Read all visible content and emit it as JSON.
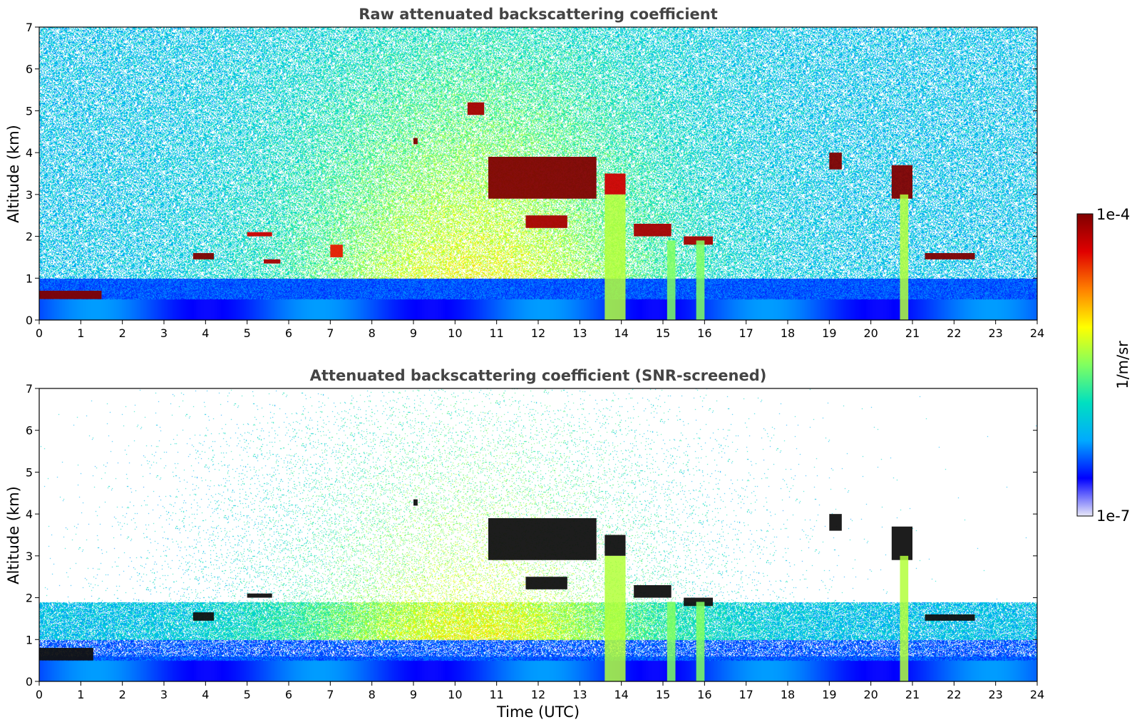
{
  "chart_data": [
    {
      "type": "heatmap",
      "title": "Raw attenuated backscattering coefficient",
      "xlabel": "",
      "ylabel": "Altitude (km)",
      "xlim": [
        0,
        24
      ],
      "ylim": [
        0,
        7
      ],
      "xticks": [
        "0",
        "1",
        "2",
        "3",
        "4",
        "5",
        "6",
        "7",
        "8",
        "9",
        "10",
        "11",
        "12",
        "13",
        "14",
        "15",
        "16",
        "17",
        "18",
        "19",
        "20",
        "21",
        "22",
        "23",
        "24"
      ],
      "yticks": [
        "0",
        "1",
        "2",
        "3",
        "4",
        "5",
        "6",
        "7"
      ],
      "features": [
        {
          "label": "low cloud",
          "x": [
            0.0,
            1.5
          ],
          "y": [
            0.5,
            0.7
          ],
          "level": 1.0
        },
        {
          "label": "cloud",
          "x": [
            3.7,
            4.2
          ],
          "y": [
            1.45,
            1.6
          ],
          "level": 1.0
        },
        {
          "label": "cloud",
          "x": [
            5.0,
            5.6
          ],
          "y": [
            2.0,
            2.1
          ],
          "level": 0.9
        },
        {
          "label": "cloud",
          "x": [
            5.4,
            5.8
          ],
          "y": [
            1.35,
            1.45
          ],
          "level": 0.95
        },
        {
          "label": "cloud",
          "x": [
            7.0,
            7.3
          ],
          "y": [
            1.5,
            1.8
          ],
          "level": 0.85
        },
        {
          "label": "cloud",
          "x": [
            9.0,
            9.1
          ],
          "y": [
            4.2,
            4.35
          ],
          "level": 1.0
        },
        {
          "label": "cloud",
          "x": [
            10.3,
            10.7
          ],
          "y": [
            4.9,
            5.2
          ],
          "level": 0.95
        },
        {
          "label": "cloud layer",
          "x": [
            10.8,
            13.4
          ],
          "y": [
            2.9,
            3.9
          ],
          "level": 1.0
        },
        {
          "label": "cloud",
          "x": [
            11.7,
            12.7
          ],
          "y": [
            2.2,
            2.5
          ],
          "level": 0.95
        },
        {
          "label": "cloud",
          "x": [
            13.6,
            14.1
          ],
          "y": [
            3.0,
            3.5
          ],
          "level": 0.9
        },
        {
          "label": "cloud",
          "x": [
            14.3,
            15.2
          ],
          "y": [
            2.0,
            2.3
          ],
          "level": 0.95
        },
        {
          "label": "cloud",
          "x": [
            15.5,
            16.2
          ],
          "y": [
            1.8,
            2.0
          ],
          "level": 0.95
        },
        {
          "label": "cloud",
          "x": [
            19.0,
            19.3
          ],
          "y": [
            3.6,
            4.0
          ],
          "level": 1.0
        },
        {
          "label": "cloud",
          "x": [
            20.5,
            21.0
          ],
          "y": [
            2.9,
            3.7
          ],
          "level": 1.0
        },
        {
          "label": "cloud",
          "x": [
            21.3,
            22.5
          ],
          "y": [
            1.45,
            1.6
          ],
          "level": 1.0
        },
        {
          "label": "precipitation",
          "x": [
            13.6,
            14.1
          ],
          "y": [
            0.0,
            3.0
          ],
          "level": 0.55
        },
        {
          "label": "precipitation",
          "x": [
            15.1,
            15.3
          ],
          "y": [
            0.0,
            1.9
          ],
          "level": 0.5
        },
        {
          "label": "precipitation",
          "x": [
            15.8,
            16.0
          ],
          "y": [
            0.0,
            1.9
          ],
          "level": 0.5
        },
        {
          "label": "precipitation",
          "x": [
            20.7,
            20.9
          ],
          "y": [
            0.0,
            3.0
          ],
          "level": 0.55
        }
      ]
    },
    {
      "type": "heatmap",
      "title": "Attenuated backscattering coefficient (SNR-screened)",
      "xlabel": "Time (UTC)",
      "ylabel": "Altitude (km)",
      "xlim": [
        0,
        24
      ],
      "ylim": [
        0,
        7
      ],
      "xticks": [
        "0",
        "1",
        "2",
        "3",
        "4",
        "5",
        "6",
        "7",
        "8",
        "9",
        "10",
        "11",
        "12",
        "13",
        "14",
        "15",
        "16",
        "17",
        "18",
        "19",
        "20",
        "21",
        "22",
        "23",
        "24"
      ],
      "yticks": [
        "0",
        "1",
        "2",
        "3",
        "4",
        "5",
        "6",
        "7"
      ],
      "features": [
        {
          "label": "low cloud",
          "x": [
            0.0,
            1.3
          ],
          "y": [
            0.5,
            0.8
          ],
          "level": 1.0
        },
        {
          "label": "cloud",
          "x": [
            3.7,
            4.2
          ],
          "y": [
            1.45,
            1.65
          ],
          "level": 1.0
        },
        {
          "label": "cloud",
          "x": [
            5.0,
            5.6
          ],
          "y": [
            2.0,
            2.1
          ],
          "level": 1.0
        },
        {
          "label": "cloud",
          "x": [
            9.0,
            9.1
          ],
          "y": [
            4.2,
            4.35
          ],
          "level": 1.0
        },
        {
          "label": "cloud layer",
          "x": [
            10.8,
            13.4
          ],
          "y": [
            2.9,
            3.9
          ],
          "level": 1.0
        },
        {
          "label": "cloud",
          "x": [
            11.7,
            12.7
          ],
          "y": [
            2.2,
            2.5
          ],
          "level": 1.0
        },
        {
          "label": "cloud",
          "x": [
            13.6,
            14.1
          ],
          "y": [
            3.0,
            3.5
          ],
          "level": 0.9
        },
        {
          "label": "cloud",
          "x": [
            14.3,
            15.2
          ],
          "y": [
            2.0,
            2.3
          ],
          "level": 1.0
        },
        {
          "label": "cloud",
          "x": [
            15.5,
            16.2
          ],
          "y": [
            1.8,
            2.0
          ],
          "level": 1.0
        },
        {
          "label": "cloud",
          "x": [
            19.0,
            19.3
          ],
          "y": [
            3.6,
            4.0
          ],
          "level": 1.0
        },
        {
          "label": "cloud",
          "x": [
            20.5,
            21.0
          ],
          "y": [
            2.9,
            3.7
          ],
          "level": 1.0
        },
        {
          "label": "cloud",
          "x": [
            21.3,
            22.5
          ],
          "y": [
            1.45,
            1.6
          ],
          "level": 1.0
        },
        {
          "label": "precipitation",
          "x": [
            13.6,
            14.1
          ],
          "y": [
            0.0,
            3.0
          ],
          "level": 0.55
        },
        {
          "label": "precipitation",
          "x": [
            15.1,
            15.3
          ],
          "y": [
            0.0,
            1.9
          ],
          "level": 0.5
        },
        {
          "label": "precipitation",
          "x": [
            15.8,
            16.0
          ],
          "y": [
            0.0,
            1.9
          ],
          "level": 0.5
        },
        {
          "label": "precipitation",
          "x": [
            20.7,
            20.9
          ],
          "y": [
            0.0,
            3.0
          ],
          "level": 0.55
        }
      ]
    }
  ],
  "colorbar": {
    "label": "1/m/sr",
    "min_label": "1e-7",
    "max_label": "1e-4",
    "scale": "log",
    "colors": [
      "#e8e8f8",
      "#0000ff",
      "#00aaff",
      "#00e0c0",
      "#80ff60",
      "#ffff00",
      "#ff8000",
      "#e00000",
      "#800000"
    ]
  }
}
